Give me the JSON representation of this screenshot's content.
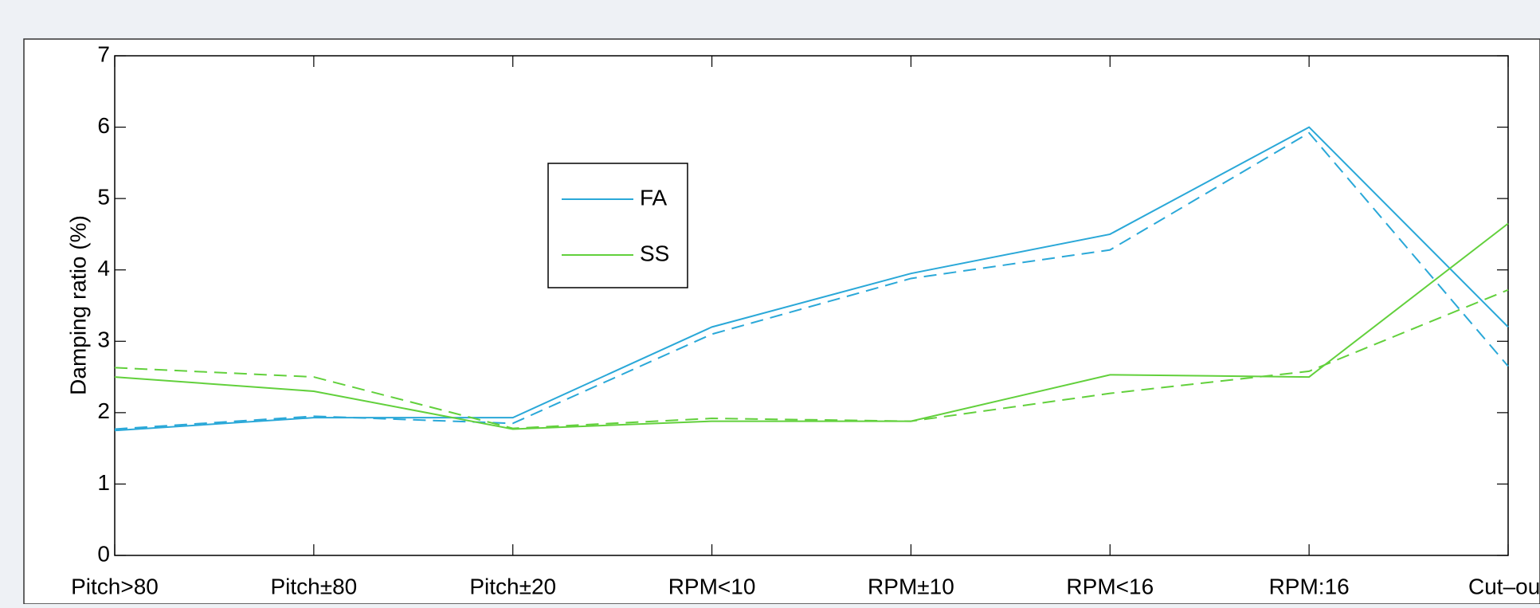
{
  "chart_data": {
    "type": "line",
    "y_label": "Damping ratio (%)",
    "categories": [
      "Pitch>80",
      "Pitch±80",
      "Pitch±20",
      "RPM<10",
      "RPM±10",
      "RPM<16",
      "RPM:16",
      "Cut–ou"
    ],
    "series": [
      {
        "name": "FA",
        "color": "#2aa8d8",
        "style": "solid",
        "values": [
          1.75,
          1.93,
          1.93,
          3.2,
          3.95,
          4.5,
          6.0,
          3.2
        ]
      },
      {
        "color": "#2aa8d8",
        "style": "dashed",
        "values": [
          1.77,
          1.95,
          1.85,
          3.1,
          3.88,
          4.28,
          5.92,
          2.65
        ]
      },
      {
        "name": "SS",
        "color": "#62d03c",
        "style": "solid",
        "values": [
          2.5,
          2.3,
          1.77,
          1.88,
          1.88,
          2.53,
          2.5,
          4.65
        ]
      },
      {
        "color": "#62d03c",
        "style": "dashed",
        "values": [
          2.63,
          2.5,
          1.78,
          1.92,
          1.88,
          2.27,
          2.58,
          3.72
        ]
      }
    ],
    "ylim": [
      0,
      7
    ],
    "yticks": [
      0,
      1,
      2,
      3,
      4,
      5,
      6,
      7
    ],
    "grid": false
  }
}
